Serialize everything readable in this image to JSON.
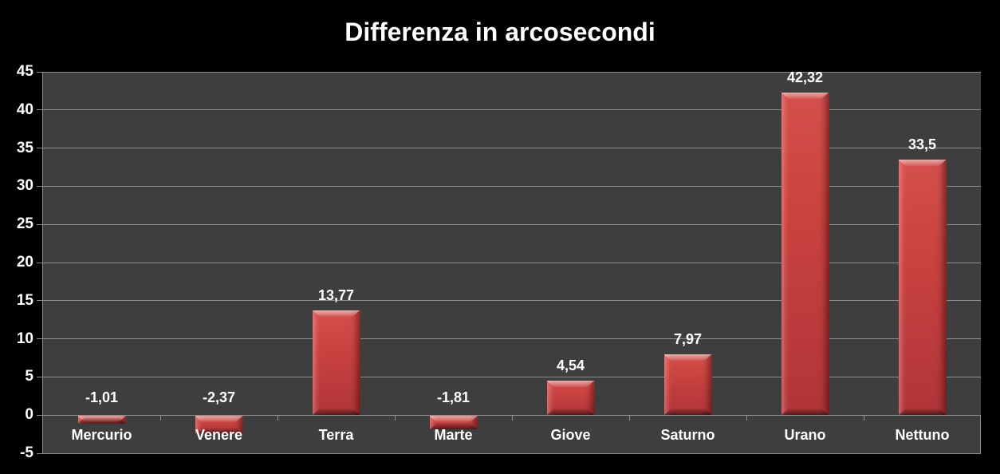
{
  "chart_data": {
    "type": "bar",
    "title": "Differenza in arcosecondi",
    "xlabel": "",
    "ylabel": "",
    "categories": [
      "Mercurio",
      "Venere",
      "Terra",
      "Marte",
      "Giove",
      "Saturno",
      "Urano",
      "Nettuno"
    ],
    "values": [
      -1.01,
      -2.37,
      13.77,
      -1.81,
      4.54,
      7.97,
      42.32,
      33.5
    ],
    "value_labels": [
      "-1,01",
      "-2,37",
      "13,77",
      "-1,81",
      "4,54",
      "7,97",
      "42,32",
      "33,5"
    ],
    "y_ticks": [
      45,
      40,
      35,
      30,
      25,
      20,
      15,
      10,
      5,
      0,
      -5
    ],
    "ylim": [
      -5,
      45
    ],
    "grid": true,
    "legend_position": "none",
    "colors": {
      "background": "#000000",
      "plot_background": "#3e3e3e",
      "gridline": "#8e8e8e",
      "bar": "#c23b3d",
      "bar_highlight": "#e8706e",
      "bar_shadow": "#8f282b",
      "text": "#ffffff"
    }
  }
}
